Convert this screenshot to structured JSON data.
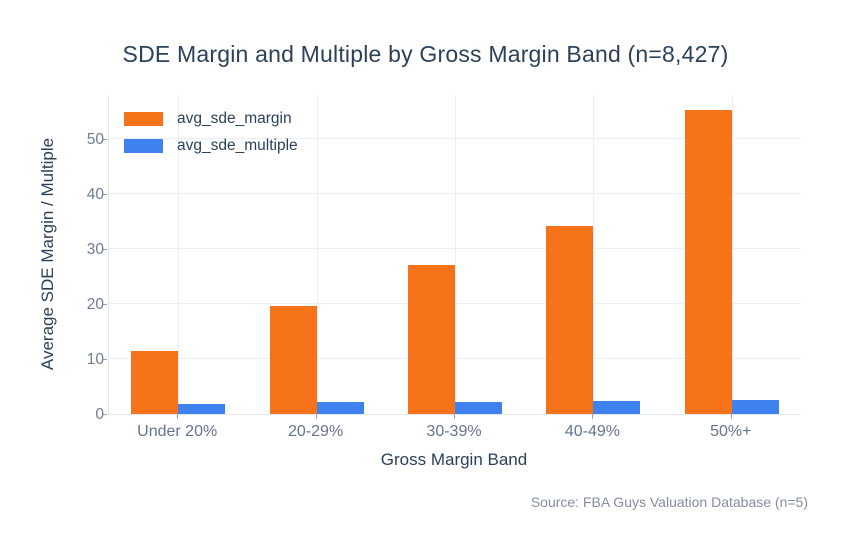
{
  "chart_data": {
    "type": "bar",
    "title": "SDE Margin and Multiple by Gross Margin Band (n=8,427)",
    "xlabel": "Gross Margin Band",
    "ylabel": "Average SDE Margin / Multiple",
    "categories": [
      "Under 20%",
      "20-29%",
      "30-39%",
      "40-49%",
      "50%+"
    ],
    "series": [
      {
        "name": "avg_sde_margin",
        "color": "#f7731a",
        "values": [
          11.5,
          19.6,
          27.1,
          34.2,
          55.4
        ]
      },
      {
        "name": "avg_sde_multiple",
        "color": "#3e82f0",
        "values": [
          1.8,
          2.1,
          2.1,
          2.3,
          2.5
        ]
      }
    ],
    "yticks": [
      0,
      10,
      20,
      30,
      40,
      50
    ],
    "ylim": [
      0,
      58.1
    ],
    "grid": true,
    "legend_position": "top-left-inside",
    "background": "#ffffff",
    "grid_color": "#ebeef4",
    "axis_line_color": "#e4e8f0"
  },
  "source_note": "Source: FBA Guys Valuation Database (n=5)"
}
